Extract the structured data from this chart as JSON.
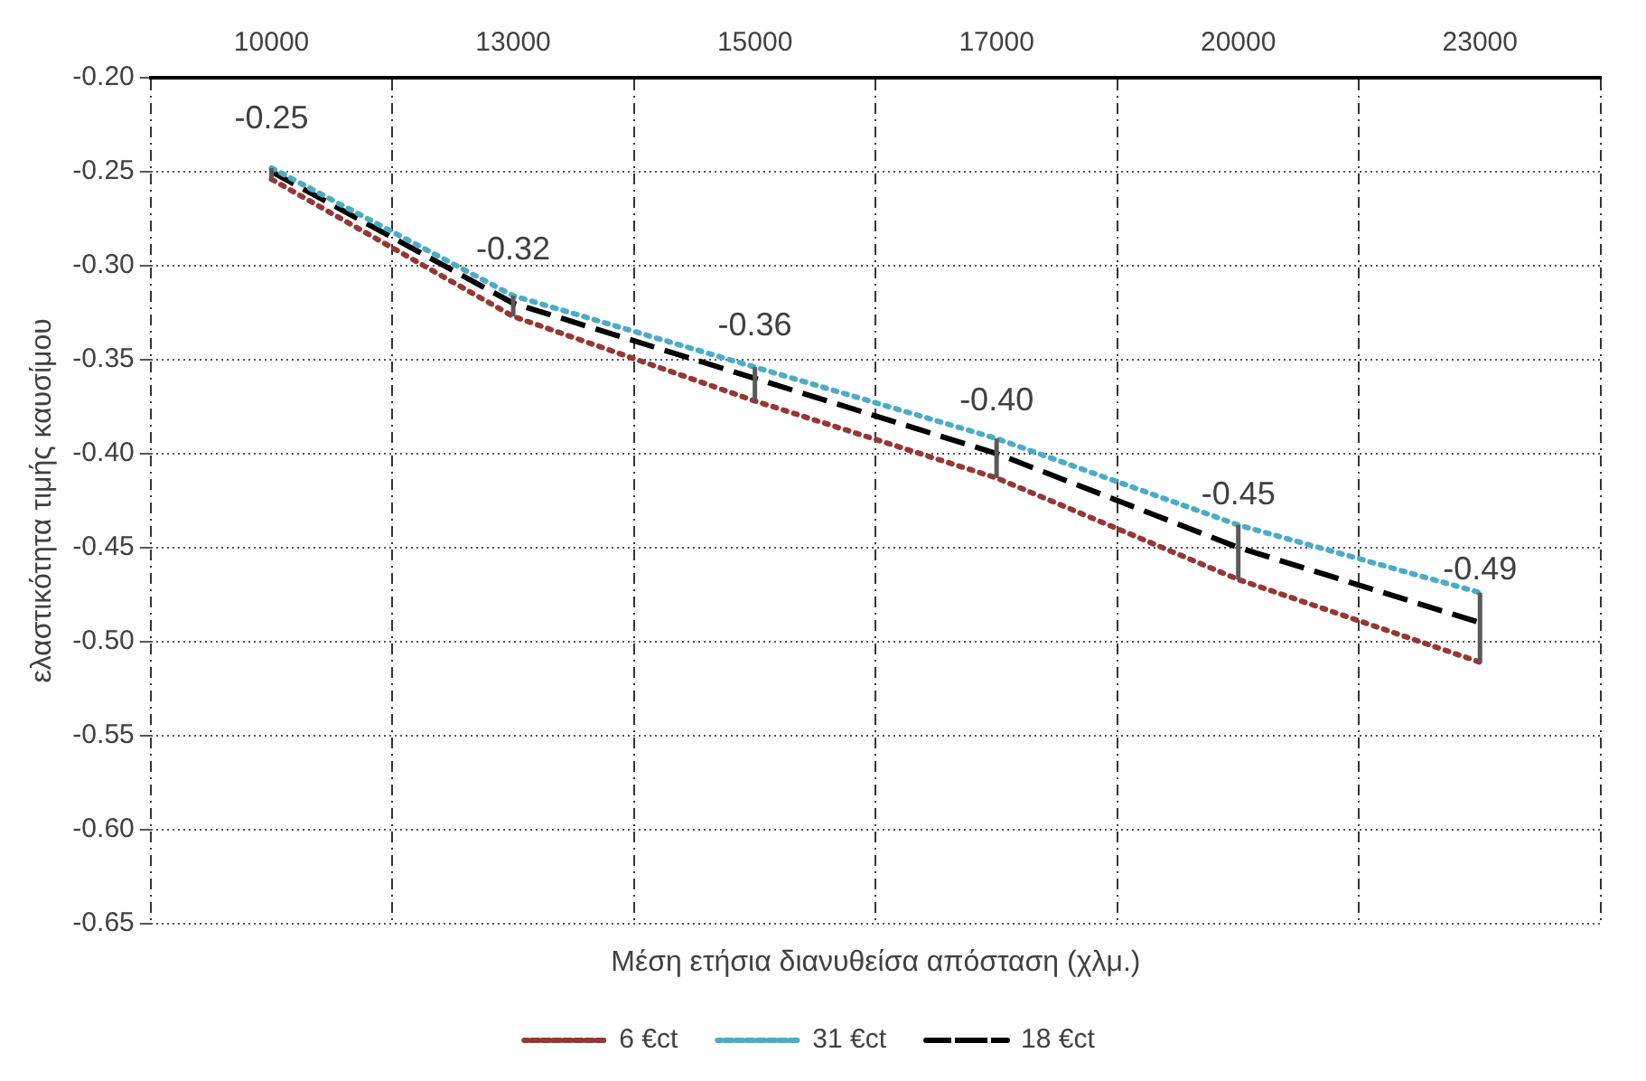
{
  "chart_data": {
    "type": "line",
    "xlabel": "Μέση ετήσια διανυθείσα απόσταση (χλμ.)",
    "ylabel": "ελαστικότητα τιμής καυσίμου",
    "categories": [
      "10000",
      "13000",
      "15000",
      "17000",
      "20000",
      "23000"
    ],
    "series": [
      {
        "name": "6 €ct",
        "color": "#953735",
        "line_style": "dotted",
        "values": [
          -0.254,
          -0.327,
          -0.372,
          -0.413,
          -0.467,
          -0.511
        ]
      },
      {
        "name": "31 €ct",
        "color": "#4bacc6",
        "line_style": "dotted",
        "values": [
          -0.248,
          -0.316,
          -0.354,
          -0.392,
          -0.438,
          -0.474
        ]
      },
      {
        "name": "18 €ct",
        "color": "#000000",
        "line_style": "dashed",
        "values": [
          -0.25,
          -0.32,
          -0.36,
          -0.4,
          -0.45,
          -0.49
        ],
        "value_labels": [
          "-0.25",
          "-0.32",
          "-0.36",
          "-0.40",
          "-0.45",
          "-0.49"
        ],
        "errors": [
          [
            -0.254,
            -0.248
          ],
          [
            -0.327,
            -0.316
          ],
          [
            -0.372,
            -0.354
          ],
          [
            -0.413,
            -0.392
          ],
          [
            -0.467,
            -0.438
          ],
          [
            -0.511,
            -0.474
          ]
        ]
      }
    ],
    "ylim": [
      -0.65,
      -0.2
    ],
    "yticks": [
      -0.65,
      {
        "value": -0.6,
        "label": "-0.60"
      },
      -0.55,
      {
        "value": -0.5,
        "label": "-0.50"
      },
      -0.45,
      {
        "value": -0.4,
        "label": "-0.40"
      },
      -0.35,
      {
        "value": -0.3,
        "label": "-0.30"
      },
      -0.25,
      {
        "value": -0.2,
        "label": "-0.20"
      }
    ],
    "grid": true,
    "legend": "bottom",
    "marker": "none"
  }
}
